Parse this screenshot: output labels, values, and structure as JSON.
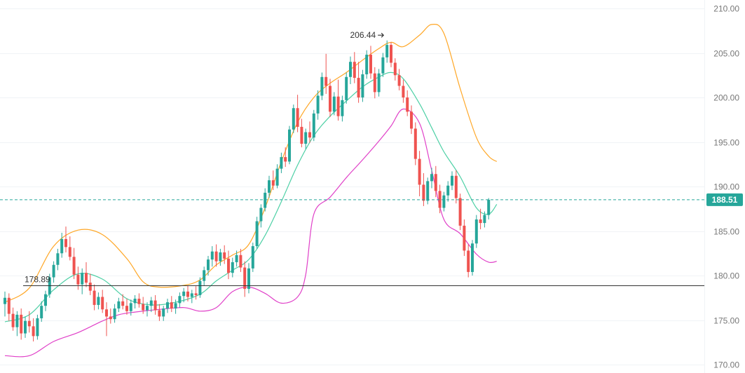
{
  "chart_data": {
    "type": "candlestick",
    "y_axis": {
      "position": "right",
      "ticks": [
        "210.00",
        "205.00",
        "200.00",
        "195.00",
        "190.00",
        "185.00",
        "180.00",
        "175.00",
        "170.00"
      ],
      "ylim": [
        169.5,
        210.5
      ]
    },
    "grid": true,
    "colors": {
      "up": "#26a69a",
      "down": "#ef5350",
      "upper_band": "#ffa726",
      "middle_band": "#4dd0a5",
      "lower_band": "#e040c8",
      "last_price_line": "#26a69a",
      "support_line": "#333333"
    },
    "last_price": {
      "value": 188.51,
      "label": "188.51"
    },
    "support_line": {
      "value": 178.89,
      "label": "178.89"
    },
    "high_marker": {
      "value": 206.44,
      "label": "206.44"
    },
    "candles": [
      [
        176.8,
        178.2,
        175.4,
        177.5
      ],
      [
        177.5,
        178.0,
        174.9,
        175.7
      ],
      [
        175.7,
        176.4,
        173.8,
        174.2
      ],
      [
        174.2,
        176.0,
        173.2,
        175.6
      ],
      [
        175.6,
        176.3,
        172.8,
        173.5
      ],
      [
        173.5,
        175.4,
        173.0,
        174.9
      ],
      [
        174.9,
        176.0,
        173.6,
        174.3
      ],
      [
        174.3,
        175.2,
        172.6,
        173.2
      ],
      [
        173.2,
        175.6,
        172.8,
        175.2
      ],
      [
        175.2,
        177.1,
        174.8,
        176.6
      ],
      [
        176.6,
        178.3,
        176.0,
        177.9
      ],
      [
        177.9,
        180.2,
        177.5,
        179.8
      ],
      [
        179.8,
        181.6,
        179.2,
        181.2
      ],
      [
        181.2,
        183.0,
        180.6,
        182.5
      ],
      [
        182.5,
        184.8,
        182.0,
        184.1
      ],
      [
        184.1,
        185.5,
        182.6,
        183.2
      ],
      [
        183.2,
        184.4,
        181.7,
        182.1
      ],
      [
        182.1,
        183.1,
        179.6,
        180.1
      ],
      [
        180.1,
        181.0,
        178.4,
        179.0
      ],
      [
        179.0,
        180.8,
        177.9,
        180.3
      ],
      [
        180.3,
        181.5,
        178.7,
        179.2
      ],
      [
        179.2,
        180.2,
        177.8,
        178.3
      ],
      [
        178.3,
        179.0,
        176.1,
        176.7
      ],
      [
        176.7,
        178.1,
        176.2,
        177.6
      ],
      [
        177.6,
        178.4,
        175.8,
        176.2
      ],
      [
        176.2,
        177.0,
        173.2,
        175.4
      ],
      [
        175.4,
        176.3,
        174.6,
        175.1
      ],
      [
        175.1,
        176.8,
        174.7,
        176.3
      ],
      [
        176.3,
        177.5,
        175.9,
        177.1
      ],
      [
        177.1,
        177.9,
        176.2,
        176.6
      ],
      [
        176.6,
        177.4,
        175.6,
        176.0
      ],
      [
        176.0,
        177.3,
        175.5,
        176.9
      ],
      [
        176.9,
        177.8,
        176.3,
        177.4
      ],
      [
        177.4,
        178.0,
        176.4,
        176.8
      ],
      [
        176.8,
        177.6,
        175.7,
        176.1
      ],
      [
        176.1,
        177.0,
        175.4,
        176.6
      ],
      [
        176.6,
        177.6,
        175.9,
        177.2
      ],
      [
        177.2,
        177.8,
        175.6,
        176.1
      ],
      [
        176.1,
        176.8,
        174.9,
        175.4
      ],
      [
        175.4,
        176.6,
        174.9,
        176.3
      ],
      [
        176.3,
        177.4,
        175.8,
        177.0
      ],
      [
        177.0,
        177.7,
        175.9,
        176.3
      ],
      [
        176.3,
        177.3,
        175.7,
        176.9
      ],
      [
        176.9,
        178.1,
        176.4,
        177.7
      ],
      [
        177.7,
        178.6,
        177.0,
        178.2
      ],
      [
        178.2,
        178.9,
        177.1,
        177.6
      ],
      [
        177.6,
        178.4,
        176.9,
        178.0
      ],
      [
        178.0,
        178.8,
        177.3,
        177.8
      ],
      [
        177.8,
        179.8,
        177.5,
        179.4
      ],
      [
        179.4,
        181.0,
        178.9,
        180.6
      ],
      [
        180.6,
        182.2,
        180.0,
        181.8
      ],
      [
        181.8,
        183.3,
        181.0,
        182.7
      ],
      [
        182.7,
        183.5,
        181.0,
        181.6
      ],
      [
        181.6,
        183.0,
        181.1,
        182.6
      ],
      [
        182.6,
        183.4,
        181.3,
        181.9
      ],
      [
        181.9,
        182.8,
        179.6,
        180.3
      ],
      [
        180.3,
        182.0,
        179.8,
        181.5
      ],
      [
        181.5,
        182.8,
        181.0,
        182.3
      ],
      [
        182.3,
        183.0,
        180.4,
        180.9
      ],
      [
        180.9,
        181.6,
        177.6,
        178.5
      ],
      [
        178.5,
        181.4,
        178.0,
        180.8
      ],
      [
        180.8,
        183.7,
        180.4,
        183.3
      ],
      [
        183.3,
        186.6,
        183.0,
        186.1
      ],
      [
        186.1,
        188.0,
        185.4,
        187.6
      ],
      [
        187.6,
        189.8,
        187.2,
        189.3
      ],
      [
        189.3,
        191.2,
        188.7,
        190.7
      ],
      [
        190.7,
        191.8,
        189.6,
        190.1
      ],
      [
        190.1,
        192.5,
        189.8,
        192.0
      ],
      [
        192.0,
        193.8,
        191.5,
        193.3
      ],
      [
        193.3,
        194.4,
        192.2,
        192.8
      ],
      [
        192.8,
        196.8,
        192.5,
        196.4
      ],
      [
        196.4,
        199.2,
        196.0,
        198.8
      ],
      [
        198.8,
        200.3,
        196.1,
        196.7
      ],
      [
        196.7,
        197.6,
        194.4,
        194.8
      ],
      [
        194.8,
        196.5,
        194.2,
        196.1
      ],
      [
        196.1,
        197.3,
        194.9,
        195.5
      ],
      [
        195.5,
        198.6,
        195.1,
        198.2
      ],
      [
        198.2,
        200.8,
        197.5,
        200.2
      ],
      [
        200.2,
        202.8,
        199.7,
        202.3
      ],
      [
        202.3,
        204.9,
        200.4,
        201.3
      ],
      [
        201.3,
        202.1,
        197.8,
        198.4
      ],
      [
        198.4,
        200.6,
        198.0,
        200.1
      ],
      [
        200.1,
        202.0,
        197.4,
        197.9
      ],
      [
        197.9,
        200.2,
        197.3,
        199.7
      ],
      [
        199.7,
        202.8,
        199.3,
        202.3
      ],
      [
        202.3,
        204.6,
        201.5,
        204.0
      ],
      [
        204.0,
        205.1,
        201.6,
        202.2
      ],
      [
        202.2,
        204.0,
        199.4,
        200.0
      ],
      [
        200.0,
        203.1,
        199.5,
        202.6
      ],
      [
        202.6,
        205.3,
        202.1,
        204.8
      ],
      [
        204.8,
        205.8,
        202.1,
        202.7
      ],
      [
        202.7,
        203.4,
        199.9,
        200.6
      ],
      [
        200.6,
        203.2,
        200.1,
        202.7
      ],
      [
        202.7,
        205.0,
        202.3,
        204.5
      ],
      [
        204.5,
        206.4,
        203.9,
        205.9
      ],
      [
        205.9,
        206.2,
        203.4,
        203.9
      ],
      [
        203.9,
        204.4,
        201.9,
        202.5
      ],
      [
        202.5,
        203.2,
        200.8,
        201.3
      ],
      [
        201.3,
        202.0,
        199.4,
        200.0
      ],
      [
        200.0,
        200.8,
        197.9,
        198.4
      ],
      [
        198.4,
        199.1,
        195.9,
        196.5
      ],
      [
        196.5,
        197.2,
        192.4,
        193.1
      ],
      [
        193.1,
        194.0,
        188.9,
        190.2
      ],
      [
        190.2,
        191.5,
        187.8,
        188.4
      ],
      [
        188.4,
        191.0,
        188.0,
        190.6
      ],
      [
        190.6,
        192.1,
        189.8,
        191.4
      ],
      [
        191.4,
        192.3,
        188.8,
        189.5
      ],
      [
        189.5,
        190.2,
        187.0,
        187.6
      ],
      [
        187.6,
        189.4,
        187.2,
        189.0
      ],
      [
        189.0,
        190.6,
        188.3,
        190.1
      ],
      [
        190.1,
        191.7,
        189.6,
        191.2
      ],
      [
        191.2,
        191.8,
        188.1,
        188.7
      ],
      [
        188.7,
        189.2,
        185.1,
        185.6
      ],
      [
        185.6,
        186.3,
        182.2,
        182.8
      ],
      [
        182.8,
        183.5,
        179.8,
        180.4
      ],
      [
        180.4,
        184.0,
        180.0,
        183.6
      ],
      [
        183.6,
        186.8,
        183.1,
        186.3
      ],
      [
        186.3,
        187.5,
        185.2,
        185.9
      ],
      [
        185.9,
        187.2,
        185.4,
        186.8
      ],
      [
        186.8,
        188.7,
        186.3,
        188.51
      ]
    ],
    "bands": {
      "upper": [
        [
          0,
          177.0
        ],
        [
          6,
          178.6
        ],
        [
          12,
          183.3
        ],
        [
          18,
          185.1
        ],
        [
          24,
          184.6
        ],
        [
          30,
          181.9
        ],
        [
          34,
          179.3
        ],
        [
          38,
          178.7
        ],
        [
          44,
          178.9
        ],
        [
          48,
          179.5
        ],
        [
          52,
          181.2
        ],
        [
          56,
          182.3
        ],
        [
          60,
          183.5
        ],
        [
          64,
          187.6
        ],
        [
          68,
          192.8
        ],
        [
          72,
          197.2
        ],
        [
          76,
          200.0
        ],
        [
          80,
          201.6
        ],
        [
          84,
          202.8
        ],
        [
          88,
          204.2
        ],
        [
          92,
          205.5
        ],
        [
          95,
          206.2
        ],
        [
          98,
          205.7
        ],
        [
          102,
          207.0
        ],
        [
          105,
          208.2
        ],
        [
          108,
          207.2
        ],
        [
          112,
          201.0
        ],
        [
          116,
          195.5
        ],
        [
          119,
          193.4
        ],
        [
          121,
          192.8
        ]
      ],
      "middle": [
        [
          0,
          174.8
        ],
        [
          6,
          175.6
        ],
        [
          12,
          178.4
        ],
        [
          18,
          180.2
        ],
        [
          24,
          179.6
        ],
        [
          30,
          177.4
        ],
        [
          36,
          176.7
        ],
        [
          42,
          177.0
        ],
        [
          48,
          177.9
        ],
        [
          52,
          179.4
        ],
        [
          56,
          180.6
        ],
        [
          60,
          181.8
        ],
        [
          64,
          184.5
        ],
        [
          68,
          188.3
        ],
        [
          72,
          192.4
        ],
        [
          76,
          195.7
        ],
        [
          80,
          197.9
        ],
        [
          84,
          199.6
        ],
        [
          88,
          201.2
        ],
        [
          92,
          202.3
        ],
        [
          95,
          202.8
        ],
        [
          98,
          202.1
        ],
        [
          102,
          199.3
        ],
        [
          105,
          196.6
        ],
        [
          108,
          193.9
        ],
        [
          112,
          191.1
        ],
        [
          116,
          187.6
        ],
        [
          119,
          186.9
        ],
        [
          121,
          188.0
        ]
      ],
      "lower": [
        [
          0,
          171.0
        ],
        [
          6,
          171.0
        ],
        [
          12,
          172.6
        ],
        [
          18,
          173.6
        ],
        [
          24,
          174.9
        ],
        [
          28,
          175.6
        ],
        [
          32,
          175.9
        ],
        [
          38,
          176.2
        ],
        [
          44,
          176.4
        ],
        [
          48,
          176.0
        ],
        [
          52,
          176.4
        ],
        [
          56,
          178.2
        ],
        [
          60,
          178.7
        ],
        [
          64,
          178.0
        ],
        [
          68,
          176.9
        ],
        [
          72,
          177.6
        ],
        [
          74,
          180.1
        ],
        [
          76,
          186.9
        ],
        [
          80,
          188.8
        ],
        [
          84,
          191.0
        ],
        [
          88,
          193.0
        ],
        [
          92,
          195.1
        ],
        [
          95,
          196.8
        ],
        [
          98,
          198.7
        ],
        [
          102,
          197.1
        ],
        [
          105,
          191.8
        ],
        [
          108,
          186.3
        ],
        [
          112,
          184.7
        ],
        [
          116,
          182.4
        ],
        [
          119,
          181.5
        ],
        [
          121,
          181.6
        ]
      ]
    }
  }
}
